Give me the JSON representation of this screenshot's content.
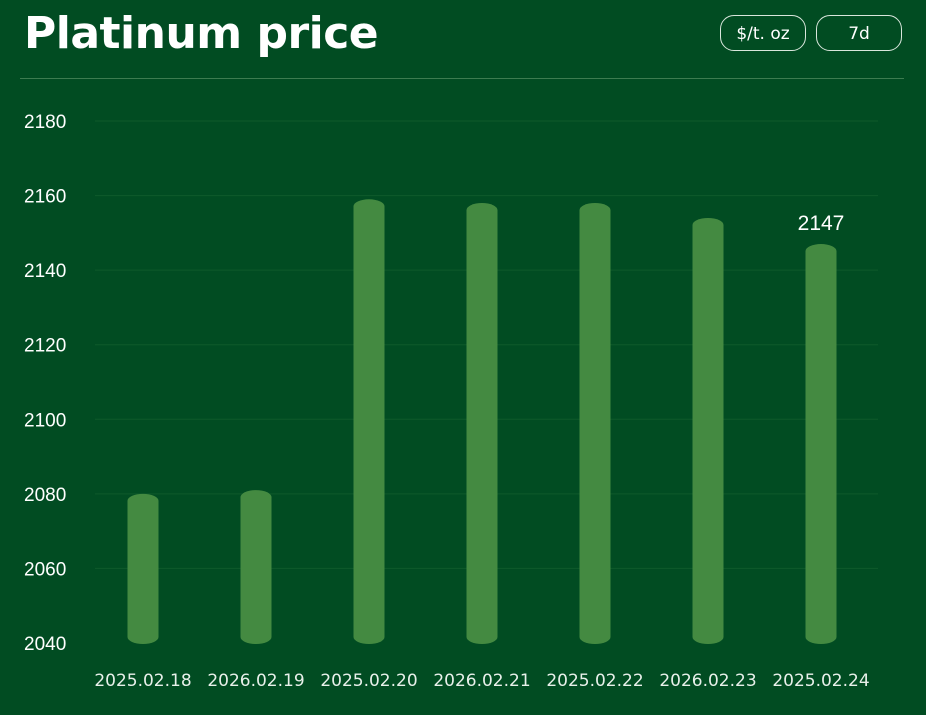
{
  "header": {
    "title": "Platinum price",
    "unit_label": "$/t. oz",
    "range_label": "7d"
  },
  "colors": {
    "background": "#014c22",
    "bar": "#448a41",
    "grid": "#0f5a2b"
  },
  "chart_data": {
    "type": "bar",
    "categories": [
      "2025.02.18",
      "2026.02.19",
      "2025.02.20",
      "2026.02.21",
      "2025.02.22",
      "2026.02.23",
      "2025.02.24"
    ],
    "values": [
      2080,
      2081,
      2159,
      2158,
      2158,
      2154,
      2147
    ],
    "ylim": [
      2040,
      2180
    ],
    "yticks": [
      2040,
      2060,
      2080,
      2100,
      2120,
      2140,
      2160,
      2180
    ],
    "data_labels": [
      null,
      null,
      null,
      null,
      null,
      null,
      "2147"
    ],
    "grid": true,
    "legend": "none"
  }
}
